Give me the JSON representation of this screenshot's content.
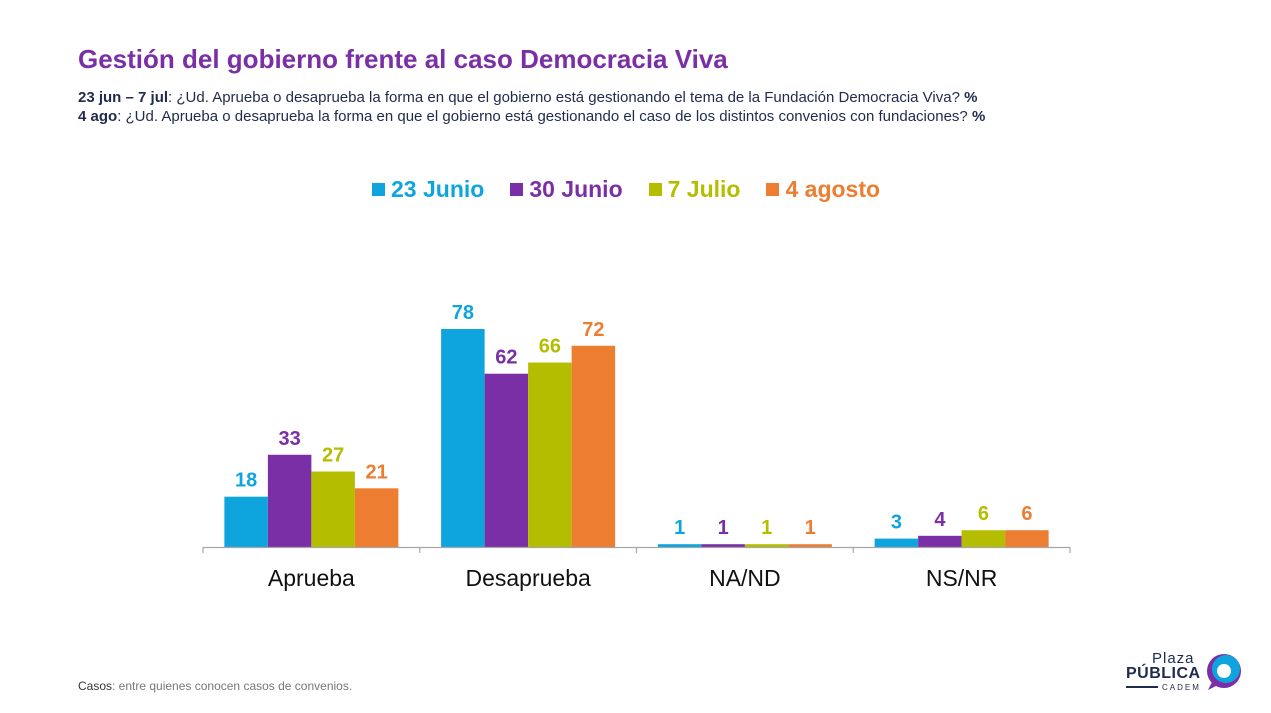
{
  "header": {
    "title": "Gestión del gobierno frente al caso Democracia Viva",
    "q1_bold": "23 jun – 7 jul",
    "q1_text": ": ¿Ud. Aprueba o desaprueba la forma en que el gobierno está gestionando el tema de la Fundación Democracia Viva? ",
    "q1_pct": "%",
    "q2_bold": "4 ago",
    "q2_text": ": ¿Ud. Aprueba o desaprueba la forma en que el gobierno está gestionando el caso de los distintos convenios con fundaciones? ",
    "q2_pct": "%"
  },
  "chart_data": {
    "type": "bar",
    "title": "",
    "xlabel": "",
    "ylabel": "",
    "ylim": [
      0,
      80
    ],
    "grid": false,
    "legend_position": "top-center",
    "categories": [
      "Aprueba",
      "Desaprueba",
      "NA/ND",
      "NS/NR"
    ],
    "series": [
      {
        "name": "23 Junio",
        "color": "#0EA5DF",
        "values": [
          18,
          78,
          1,
          3
        ]
      },
      {
        "name": "30 Junio",
        "color": "#7B2FA6",
        "values": [
          33,
          62,
          1,
          4
        ]
      },
      {
        "name": "7 Julio",
        "color": "#B5BD00",
        "values": [
          27,
          66,
          1,
          6
        ]
      },
      {
        "name": "4 agosto",
        "color": "#ED7D31",
        "values": [
          21,
          72,
          1,
          6
        ]
      }
    ]
  },
  "footer": {
    "label": "Casos",
    "text": ": entre quienes conocen casos de convenios."
  },
  "logo": {
    "line1": "Plaza",
    "line2": "PÚBLICA",
    "line3": "CADEM"
  }
}
